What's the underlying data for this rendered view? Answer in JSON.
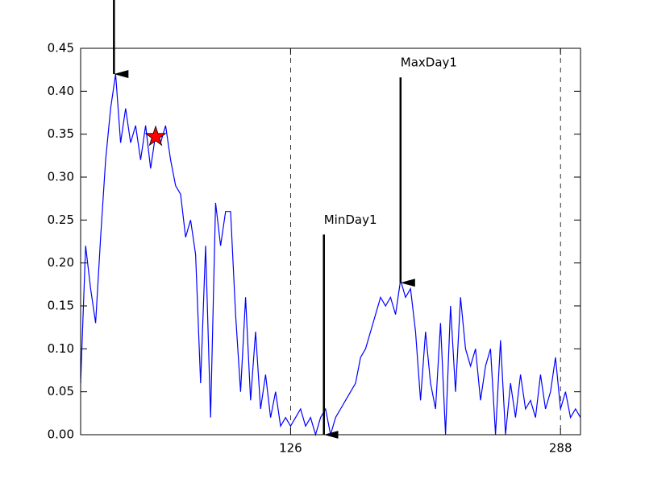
{
  "chart_data": {
    "type": "line",
    "x": [
      0,
      3,
      6,
      9,
      12,
      15,
      18,
      21,
      24,
      27,
      30,
      33,
      36,
      39,
      42,
      45,
      48,
      51,
      54,
      57,
      60,
      63,
      66,
      69,
      72,
      75,
      78,
      81,
      84,
      87,
      90,
      93,
      96,
      99,
      102,
      105,
      108,
      111,
      114,
      117,
      120,
      123,
      126,
      129,
      132,
      135,
      138,
      141,
      144,
      147,
      150,
      153,
      156,
      159,
      162,
      165,
      168,
      171,
      174,
      177,
      180,
      183,
      186,
      189,
      192,
      195,
      198,
      201,
      204,
      207,
      210,
      213,
      216,
      219,
      222,
      225,
      228,
      231,
      234,
      237,
      240,
      243,
      246,
      249,
      252,
      255,
      258,
      261,
      264,
      267,
      270,
      273,
      276,
      279,
      282,
      285,
      288,
      291,
      294,
      297,
      300
    ],
    "series": [
      {
        "color": "#0000ff",
        "values": [
          0.06,
          0.22,
          0.17,
          0.13,
          0.23,
          0.32,
          0.38,
          0.42,
          0.34,
          0.38,
          0.34,
          0.36,
          0.32,
          0.36,
          0.31,
          0.35,
          0.34,
          0.36,
          0.32,
          0.29,
          0.28,
          0.23,
          0.25,
          0.21,
          0.06,
          0.22,
          0.02,
          0.27,
          0.22,
          0.26,
          0.26,
          0.14,
          0.05,
          0.16,
          0.04,
          0.12,
          0.03,
          0.07,
          0.02,
          0.05,
          0.01,
          0.02,
          0.01,
          0.02,
          0.03,
          0.01,
          0.02,
          0.0,
          0.02,
          0.03,
          0.0,
          0.02,
          0.03,
          0.04,
          0.05,
          0.06,
          0.09,
          0.1,
          0.12,
          0.14,
          0.16,
          0.15,
          0.16,
          0.14,
          0.18,
          0.16,
          0.17,
          0.12,
          0.04,
          0.12,
          0.06,
          0.03,
          0.13,
          0.0,
          0.15,
          0.05,
          0.16,
          0.1,
          0.08,
          0.1,
          0.04,
          0.08,
          0.1,
          0.0,
          0.11,
          0.0,
          0.06,
          0.02,
          0.07,
          0.03,
          0.04,
          0.02,
          0.07,
          0.03,
          0.05,
          0.09,
          0.03,
          0.05,
          0.02,
          0.03,
          0.02
        ]
      }
    ],
    "xlim": [
      0,
      300
    ],
    "ylim": [
      0,
      0.45
    ],
    "xticks": [
      126,
      288
    ],
    "yticks": [
      {
        "value": 0,
        "label": "0.00"
      },
      {
        "value": 0.05,
        "label": "0.05"
      },
      {
        "value": 0.1,
        "label": "0.10"
      },
      {
        "value": 0.15,
        "label": "0.15"
      },
      {
        "value": 0.2,
        "label": "0.20"
      },
      {
        "value": 0.25,
        "label": "0.25"
      },
      {
        "value": 0.3,
        "label": "0.30"
      },
      {
        "value": 0.35,
        "label": "0.35"
      },
      {
        "value": 0.4,
        "label": "0.40"
      },
      {
        "value": 0.45,
        "label": "0.45"
      }
    ],
    "xgrid": true,
    "star": {
      "x": 45,
      "y": 0.347,
      "color": "#ff0000"
    },
    "annotations": [
      {
        "x": 20,
        "y": 0.42
      },
      {
        "text": "MinDay1",
        "x": 146,
        "y": 0,
        "text_y": 0.25
      },
      {
        "text": "MaxDay1",
        "x": 192,
        "y": 0.177,
        "text_y": 0.433
      }
    ]
  }
}
